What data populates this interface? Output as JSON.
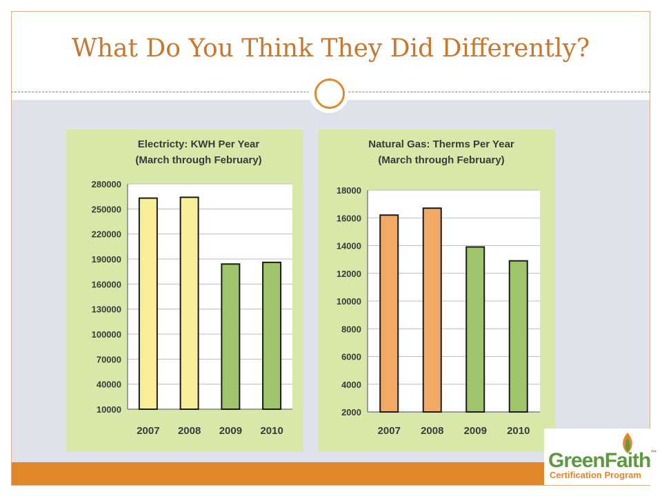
{
  "slide": {
    "title": "What Do You Think They Did Differently?"
  },
  "colors": {
    "title": "#c8772f",
    "accent": "#e2862a",
    "band": "#dee3eb",
    "panel": "#d7e8a9"
  },
  "chart_data": [
    {
      "type": "bar",
      "title": "Electricty:  KWH Per Year",
      "subtitle": "(March through February)",
      "categories": [
        "2007",
        "2008",
        "2009",
        "2010"
      ],
      "values": [
        263000,
        264000,
        184000,
        186000
      ],
      "bar_colors": [
        "#f7ee97",
        "#f7ee97",
        "#9fc46b",
        "#9fc46b"
      ],
      "yticks": [
        "10000",
        "40000",
        "70000",
        "100000",
        "130000",
        "160000",
        "190000",
        "220000",
        "250000",
        "280000"
      ],
      "ylim": [
        10000,
        280000
      ],
      "grid": true
    },
    {
      "type": "bar",
      "title": "Natural Gas:  Therms Per Year",
      "subtitle": "(March through February)",
      "categories": [
        "2007",
        "2008",
        "2009",
        "2010"
      ],
      "values": [
        16200,
        16700,
        13900,
        12900
      ],
      "bar_colors": [
        "#f2a965",
        "#f2a965",
        "#9fc46b",
        "#9fc46b"
      ],
      "yticks": [
        "2000",
        "4000",
        "6000",
        "8000",
        "10000",
        "12000",
        "14000",
        "16000",
        "18000"
      ],
      "ylim": [
        2000,
        18000
      ],
      "grid": true
    }
  ],
  "logo": {
    "name": "GreenFaith",
    "tm": "™",
    "tagline": "Certification Program"
  }
}
